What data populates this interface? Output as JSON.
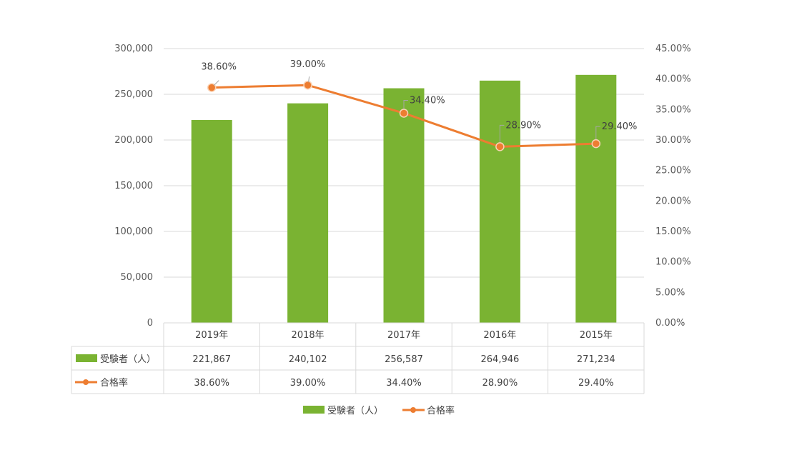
{
  "chart_data": {
    "type": "bar+line",
    "title": "",
    "categories": [
      "2019年",
      "2018年",
      "2017年",
      "2016年",
      "2015年"
    ],
    "series": [
      {
        "name": "受験者（人）",
        "type": "bar",
        "axis": "left",
        "color": "#7ab332",
        "values": [
          221867,
          240102,
          256587,
          264946,
          271234
        ],
        "value_labels": [
          "221,867",
          "240,102",
          "256,587",
          "264,946",
          "271,234"
        ]
      },
      {
        "name": "合格率",
        "type": "line",
        "axis": "right",
        "color": "#ed7d31",
        "values": [
          38.6,
          39.0,
          34.4,
          28.9,
          29.4
        ],
        "value_labels": [
          "38.60%",
          "39.00%",
          "34.40%",
          "28.90%",
          "29.40%"
        ]
      }
    ],
    "left_axis": {
      "min": 0,
      "max": 300000,
      "ticks": [
        0,
        50000,
        100000,
        150000,
        200000,
        250000,
        300000
      ],
      "tick_labels": [
        "0",
        "50,000",
        "100,000",
        "150,000",
        "200,000",
        "250,000",
        "300,000"
      ]
    },
    "right_axis": {
      "min": 0,
      "max": 45,
      "ticks": [
        0,
        5,
        10,
        15,
        20,
        25,
        30,
        35,
        40,
        45
      ],
      "tick_labels": [
        "0.00%",
        "5.00%",
        "10.00%",
        "15.00%",
        "20.00%",
        "25.00%",
        "30.00%",
        "35.00%",
        "40.00%",
        "45.00%"
      ]
    },
    "grid": true,
    "data_table": true,
    "legend_position": "bottom"
  }
}
